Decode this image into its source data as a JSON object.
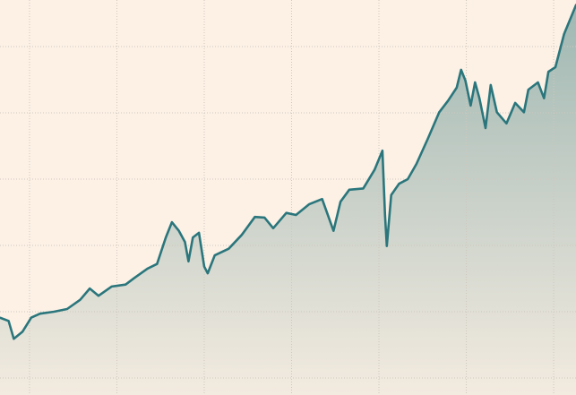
{
  "chart_data": {
    "type": "area",
    "x": [
      -0.34,
      -0.24,
      -0.18,
      -0.08,
      0.02,
      0.12,
      0.28,
      0.43,
      0.58,
      0.69,
      0.79,
      0.94,
      1.1,
      1.2,
      1.35,
      1.46,
      1.56,
      1.63,
      1.71,
      1.78,
      1.82,
      1.87,
      1.94,
      2.0,
      2.04,
      2.12,
      2.28,
      2.43,
      2.58,
      2.69,
      2.79,
      2.94,
      3.05,
      3.2,
      3.35,
      3.48,
      3.56,
      3.66,
      3.82,
      3.95,
      4.04,
      4.07,
      4.09,
      4.14,
      4.23,
      4.33,
      4.43,
      4.56,
      4.69,
      4.79,
      4.89,
      4.94,
      4.99,
      5.05,
      5.1,
      5.15,
      5.22,
      5.28,
      5.35,
      5.46,
      5.56,
      5.66,
      5.71,
      5.82,
      5.89,
      5.94,
      6.02,
      6.12,
      6.26
    ],
    "values": [
      0.91,
      0.86,
      0.59,
      0.7,
      0.91,
      0.97,
      1.0,
      1.04,
      1.18,
      1.35,
      1.24,
      1.38,
      1.41,
      1.51,
      1.65,
      1.72,
      2.12,
      2.35,
      2.22,
      2.05,
      1.76,
      2.12,
      2.19,
      1.68,
      1.58,
      1.85,
      1.95,
      2.16,
      2.43,
      2.42,
      2.26,
      2.49,
      2.46,
      2.62,
      2.7,
      2.22,
      2.66,
      2.84,
      2.86,
      3.14,
      3.43,
      2.46,
      1.99,
      2.76,
      2.93,
      3.0,
      3.23,
      3.61,
      4.01,
      4.18,
      4.38,
      4.65,
      4.49,
      4.11,
      4.46,
      4.22,
      3.77,
      4.42,
      4.01,
      3.84,
      4.15,
      4.01,
      4.35,
      4.46,
      4.22,
      4.62,
      4.69,
      5.19,
      5.64
    ],
    "color": "#2a767c",
    "xlim": [
      -0.338,
      6.256
    ],
    "xticks": [
      0,
      1,
      2,
      3,
      4,
      5,
      6
    ],
    "ylim": [
      -0.257,
      5.703
    ],
    "yticks": [
      0,
      1,
      2,
      3,
      4,
      5
    ],
    "grid": true
  }
}
